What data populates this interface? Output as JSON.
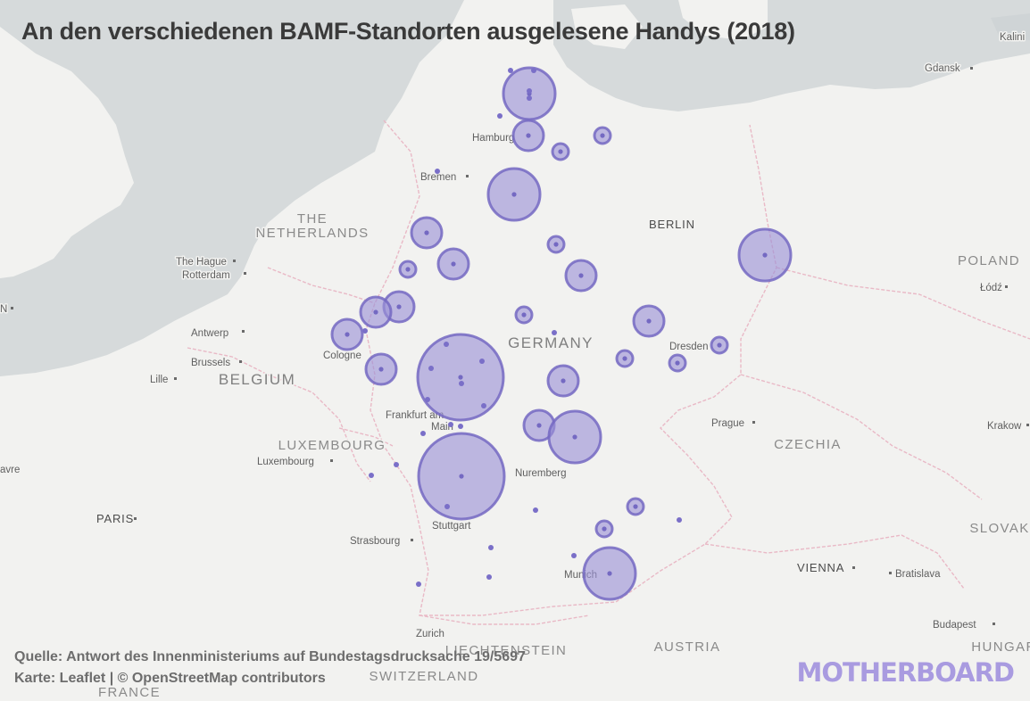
{
  "title": "An den verschiedenen BAMF-Standorten ausgelesene Handys (2018)",
  "source_line": "Quelle: Antwort des Innenministeriums auf Bundestagsdrucksache 19/5697",
  "credit_line": "Karte: Leaflet | © OpenStreetMap contributors",
  "brand": "MOTHERBOARD",
  "colors": {
    "bubble_fill": "#9b92d6",
    "bubble_stroke": "#7469c2",
    "water": "#d6dadb",
    "land": "#f2f2f0",
    "border": "#e9b9c6"
  },
  "country_labels": [
    {
      "text": "THE",
      "kind": "country"
    },
    {
      "text": "NETHERLANDS",
      "kind": "country"
    },
    {
      "text": "BELGIUM",
      "kind": "country-big"
    },
    {
      "text": "LUXEMBOURG",
      "kind": "country"
    },
    {
      "text": "GERMANY",
      "kind": "country-big"
    },
    {
      "text": "POLAND",
      "kind": "country"
    },
    {
      "text": "CZECHIA",
      "kind": "country"
    },
    {
      "text": "AUSTRIA",
      "kind": "country"
    },
    {
      "text": "SWITZERLAND",
      "kind": "country"
    },
    {
      "text": "LIECHTENSTEIN",
      "kind": "country"
    },
    {
      "text": "FRANCE",
      "kind": "country"
    },
    {
      "text": "SLOVAK",
      "kind": "country"
    },
    {
      "text": "HUNGAR",
      "kind": "country"
    }
  ],
  "city_labels": [
    "Kalini",
    "Gdansk",
    "Hamburg",
    "Bremen",
    "BERLIN",
    "The Hague",
    "Rotterdam",
    "Łódź",
    "Antwerp",
    "Cologne",
    "Brussels",
    "Lille",
    "Dresden",
    "Frankfurt am",
    "Main",
    "Prague",
    "Krakow",
    "Luxembourg",
    "Nuremberg",
    "avre",
    "PARIS",
    "Stuttgart",
    "Strasbourg",
    "Munich",
    "VIENNA",
    "Bratislava",
    "Budapest",
    "Zurich",
    "N"
  ],
  "locations": [
    {
      "size": "large"
    },
    {
      "size": "medium"
    },
    {
      "size": "small"
    },
    {
      "size": "small"
    },
    {
      "size": "large"
    },
    {
      "size": "medium"
    },
    {
      "size": "small"
    },
    {
      "size": "medium"
    },
    {
      "size": "small"
    },
    {
      "size": "medium"
    },
    {
      "size": "medium"
    },
    {
      "size": "small"
    },
    {
      "size": "large"
    },
    {
      "size": "medium"
    },
    {
      "size": "small"
    },
    {
      "size": "very-large"
    },
    {
      "size": "medium"
    },
    {
      "size": "medium"
    },
    {
      "size": "small"
    },
    {
      "size": "small"
    },
    {
      "size": "medium"
    },
    {
      "size": "medium"
    },
    {
      "size": "medium"
    },
    {
      "size": "large"
    },
    {
      "size": "very-large"
    },
    {
      "size": "small"
    },
    {
      "size": "small"
    },
    {
      "size": "large"
    }
  ]
}
